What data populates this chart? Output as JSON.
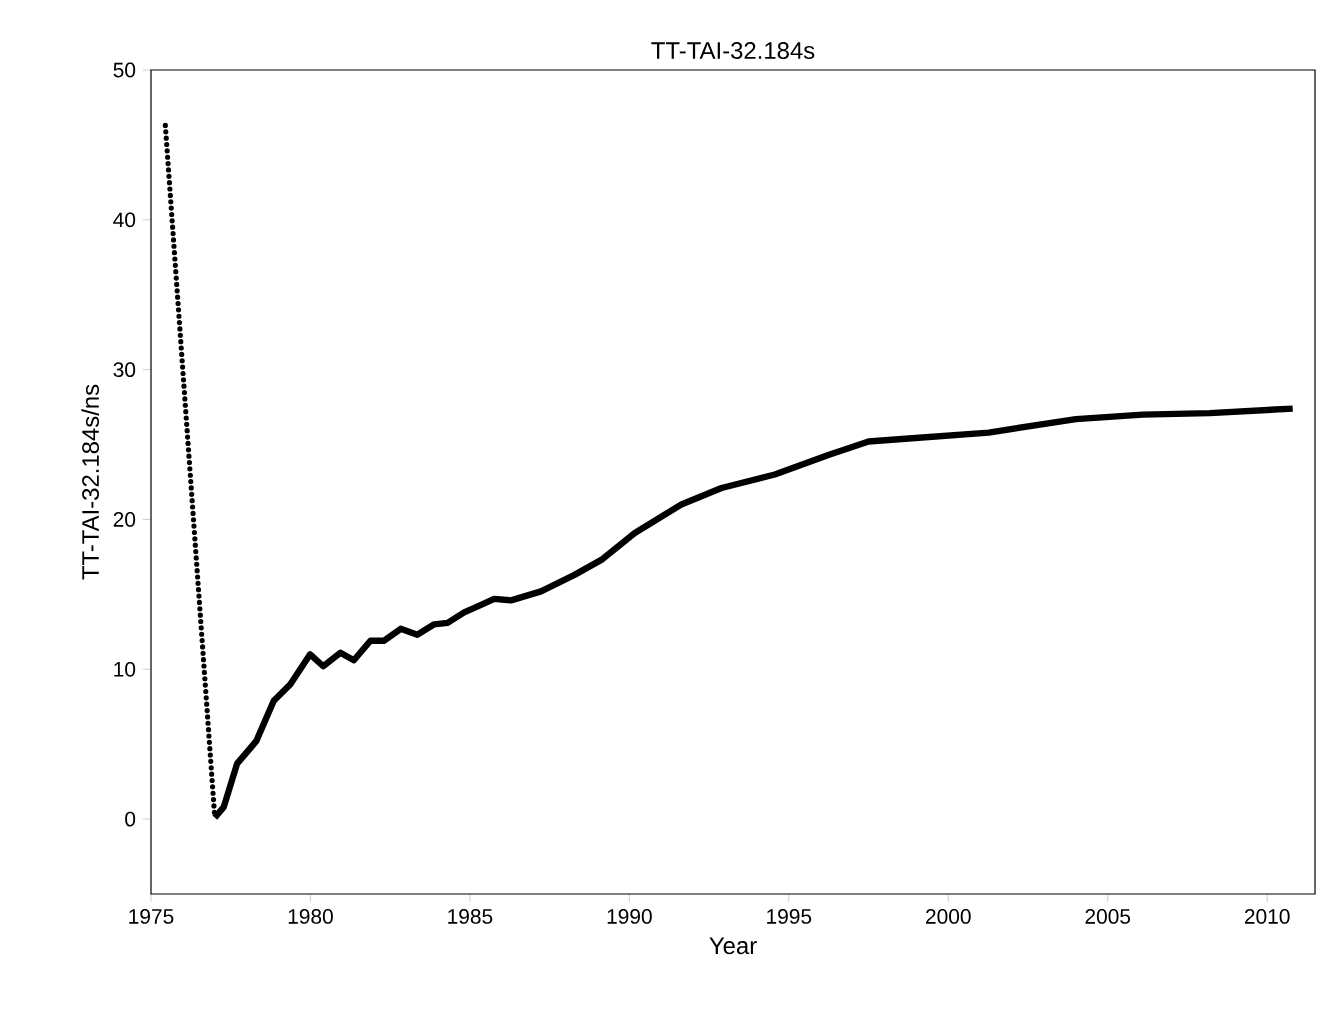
{
  "chart_data": {
    "type": "line",
    "title": "TT-TAI-32.184s",
    "xlabel": "Year",
    "ylabel": "TT-TAI-32.184s/ns",
    "xlim": [
      1975,
      2011.5
    ],
    "xticks": [
      1975,
      1980,
      1985,
      1990,
      1995,
      2000,
      2005,
      2010
    ],
    "ylim": [
      -5,
      50
    ],
    "yticks": [
      0,
      10,
      20,
      30,
      40,
      50
    ],
    "series": [
      {
        "color": "#000000",
        "line_style": "dotted",
        "x": [
          1975.45,
          1977.0
        ],
        "values": [
          46.3,
          0.1
        ]
      },
      {
        "color": "#000000",
        "line_style": "solid",
        "x": [
          1977.0,
          1977.28,
          1977.7,
          1978.3,
          1978.85,
          1979.37,
          1979.99,
          1980.4,
          1980.94,
          1981.36,
          1981.88,
          1982.3,
          1982.83,
          1983.35,
          1983.88,
          1984.3,
          1984.82,
          1985.35,
          1985.76,
          1986.29,
          1987.23,
          1988.28,
          1989.12,
          1990.17,
          1991.63,
          1992.89,
          1994.56,
          1996.24,
          1997.5,
          1998.76,
          2001.27,
          2004.0,
          2006.1,
          2008.2,
          2010.8
        ],
        "values": [
          0.1,
          0.8,
          3.7,
          5.2,
          7.9,
          9.0,
          11.0,
          10.2,
          11.1,
          10.6,
          11.9,
          11.9,
          12.7,
          12.3,
          13.0,
          13.1,
          13.8,
          14.3,
          14.7,
          14.6,
          15.2,
          16.3,
          17.3,
          19.1,
          21.0,
          22.1,
          23.0,
          24.3,
          25.2,
          25.4,
          25.8,
          26.7,
          27.0,
          27.1,
          27.4
        ]
      }
    ]
  }
}
